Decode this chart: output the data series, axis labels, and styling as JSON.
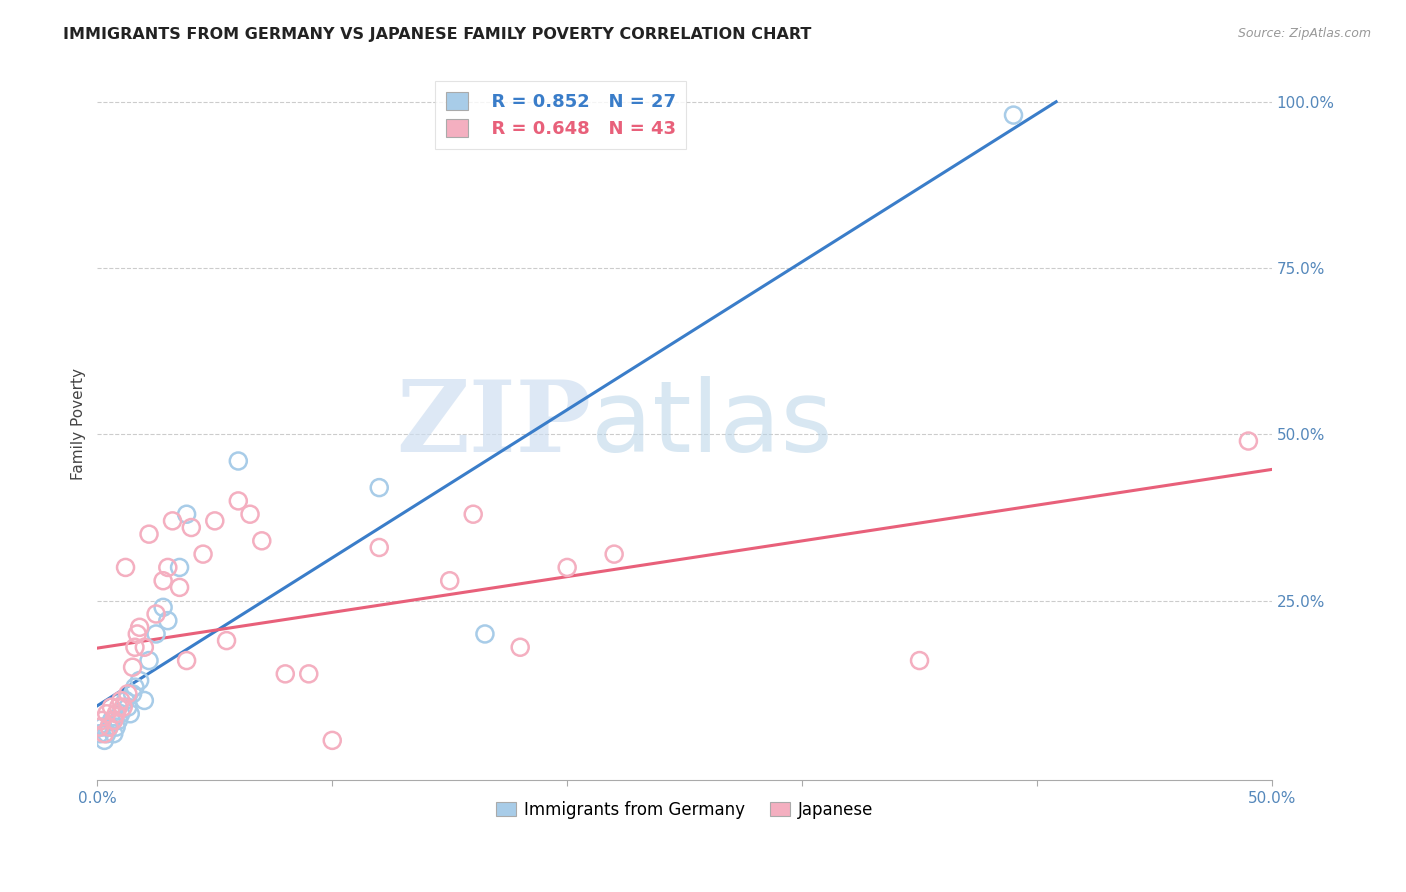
{
  "title": "IMMIGRANTS FROM GERMANY VS JAPANESE FAMILY POVERTY CORRELATION CHART",
  "source": "Source: ZipAtlas.com",
  "ylabel": "Family Poverty",
  "xlim": [
    0.0,
    0.5
  ],
  "ylim": [
    -0.02,
    1.05
  ],
  "yticks": [
    0.0,
    0.25,
    0.5,
    0.75,
    1.0
  ],
  "ytick_labels": [
    "",
    "25.0%",
    "50.0%",
    "75.0%",
    "100.0%"
  ],
  "xticks": [
    0.0,
    0.1,
    0.2,
    0.3,
    0.4,
    0.5
  ],
  "xtick_labels": [
    "0.0%",
    "",
    "",
    "",
    "",
    "50.0%"
  ],
  "legend_blue_r": "R = 0.852",
  "legend_blue_n": "N = 27",
  "legend_pink_r": "R = 0.648",
  "legend_pink_n": "N = 43",
  "blue_color": "#a8cce8",
  "pink_color": "#f4afc0",
  "blue_line_color": "#3a7dc9",
  "pink_line_color": "#e8607a",
  "watermark_zip": "ZIP",
  "watermark_atlas": "atlas",
  "blue_scatter_x": [
    0.001,
    0.002,
    0.003,
    0.004,
    0.005,
    0.006,
    0.007,
    0.008,
    0.009,
    0.01,
    0.012,
    0.013,
    0.014,
    0.015,
    0.016,
    0.018,
    0.02,
    0.022,
    0.025,
    0.028,
    0.03,
    0.035,
    0.038,
    0.06,
    0.12,
    0.165,
    0.39
  ],
  "blue_scatter_y": [
    0.05,
    0.06,
    0.04,
    0.05,
    0.06,
    0.07,
    0.05,
    0.06,
    0.07,
    0.08,
    0.1,
    0.09,
    0.08,
    0.11,
    0.12,
    0.13,
    0.1,
    0.16,
    0.2,
    0.24,
    0.22,
    0.3,
    0.38,
    0.46,
    0.42,
    0.2,
    0.98
  ],
  "pink_scatter_x": [
    0.001,
    0.002,
    0.003,
    0.004,
    0.005,
    0.006,
    0.007,
    0.008,
    0.009,
    0.01,
    0.011,
    0.012,
    0.013,
    0.015,
    0.016,
    0.017,
    0.018,
    0.02,
    0.022,
    0.025,
    0.028,
    0.03,
    0.032,
    0.035,
    0.038,
    0.04,
    0.045,
    0.05,
    0.055,
    0.06,
    0.065,
    0.07,
    0.08,
    0.09,
    0.1,
    0.12,
    0.15,
    0.16,
    0.18,
    0.2,
    0.22,
    0.35,
    0.49
  ],
  "pink_scatter_y": [
    0.06,
    0.07,
    0.05,
    0.08,
    0.06,
    0.09,
    0.07,
    0.08,
    0.09,
    0.1,
    0.09,
    0.3,
    0.11,
    0.15,
    0.18,
    0.2,
    0.21,
    0.18,
    0.35,
    0.23,
    0.28,
    0.3,
    0.37,
    0.27,
    0.16,
    0.36,
    0.32,
    0.37,
    0.19,
    0.4,
    0.38,
    0.34,
    0.14,
    0.14,
    0.04,
    0.33,
    0.28,
    0.38,
    0.18,
    0.3,
    0.32,
    0.16,
    0.49
  ]
}
